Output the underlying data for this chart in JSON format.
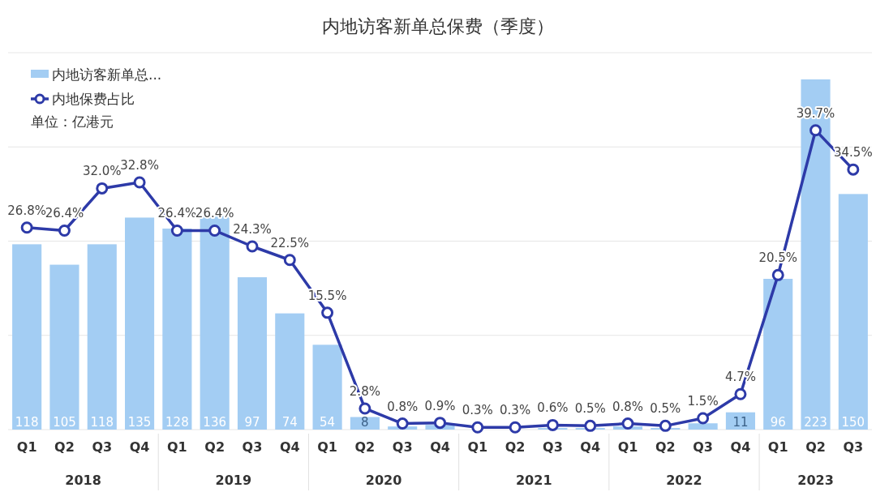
{
  "chart_data": {
    "type": "bar",
    "title": "内地访客新单总保费（季度）",
    "categories": [
      "Q1",
      "Q2",
      "Q3",
      "Q4",
      "Q1",
      "Q2",
      "Q3",
      "Q4",
      "Q1",
      "Q2",
      "Q3",
      "Q4",
      "Q1",
      "Q2",
      "Q3",
      "Q4",
      "Q1",
      "Q2",
      "Q3",
      "Q4",
      "Q1",
      "Q2",
      "Q3"
    ],
    "series": [
      {
        "name": "内地访客新单总...",
        "color": "#a3cdf3",
        "values": [
          118,
          105,
          118,
          135,
          128,
          136,
          97,
          74,
          54,
          8,
          2,
          3,
          null,
          null,
          1,
          1,
          2,
          1,
          4,
          11,
          96,
          223,
          150
        ],
        "value_labels": [
          "118",
          "105",
          "118",
          "135",
          "128",
          "136",
          "97",
          "74",
          "54",
          "8",
          null,
          null,
          null,
          null,
          null,
          null,
          null,
          null,
          null,
          "11",
          "96",
          "223",
          "150"
        ]
      },
      {
        "name": "内地保费占比",
        "type": "line",
        "axis": "y2",
        "color": "#2d3aa8",
        "marker": "circle",
        "values": [
          26.8,
          26.4,
          32.0,
          32.8,
          26.4,
          26.4,
          24.3,
          22.5,
          15.5,
          2.8,
          0.8,
          0.9,
          0.3,
          0.3,
          0.6,
          0.5,
          0.8,
          0.5,
          1.5,
          4.7,
          20.5,
          39.7,
          34.5
        ],
        "value_labels": [
          "26.8%",
          "26.4%",
          "32.0%",
          "32.8%",
          "26.4%",
          "26.4%",
          "24.3%",
          "22.5%",
          "15.5%",
          "2.8%",
          "0.8%",
          "0.9%",
          "0.3%",
          "0.3%",
          "0.6%",
          "0.5%",
          "0.8%",
          "0.5%",
          "1.5%",
          "4.7%",
          "20.5%",
          "39.7%",
          "34.5%"
        ]
      }
    ],
    "ylim": [
      0,
      240
    ],
    "yticks": [
      {
        "value": 0,
        "label": null
      },
      {
        "value": 60,
        "label": null
      },
      {
        "value": 120,
        "label": null
      },
      {
        "value": 180,
        "label": null
      },
      {
        "value": 240,
        "label": null
      }
    ],
    "y2lim": [
      0,
      50
    ],
    "grid": "y",
    "tick_labels": "x",
    "legend": "top left",
    "annotations": [
      "单位：亿港元",
      "2018",
      "2019",
      "2020",
      "2021",
      "2022",
      "2023"
    ]
  }
}
